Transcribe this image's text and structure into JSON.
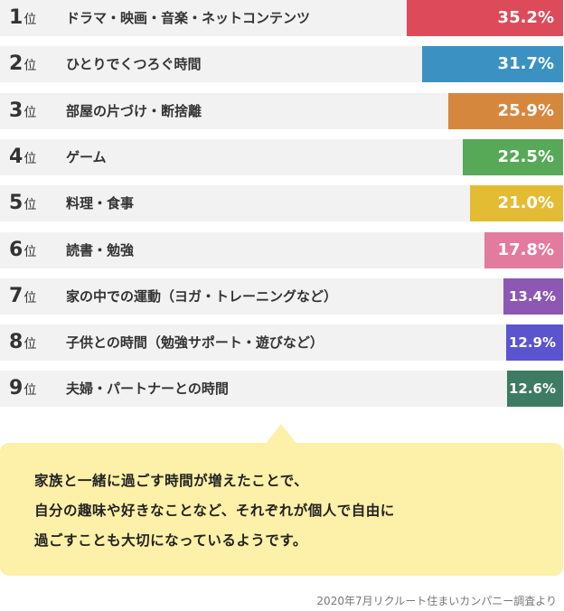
{
  "chart_data": {
    "type": "bar",
    "orientation": "horizontal",
    "rank_suffix": "位",
    "ranks": [
      "1",
      "2",
      "3",
      "4",
      "5",
      "6",
      "7",
      "8",
      "9"
    ],
    "categories": [
      "ドラマ・映画・音楽・ネットコンテンツ",
      "ひとりでくつろぐ時間",
      "部屋の片づけ・断捨離",
      "ゲーム",
      "料理・食事",
      "読書・勉強",
      "家の中での運動（ヨガ・トレーニングなど）",
      "子供との時間（勉強サポート・遊びなど）",
      "夫婦・パートナーとの時間"
    ],
    "values": [
      35.2,
      31.7,
      25.9,
      22.5,
      21.0,
      17.8,
      13.4,
      12.9,
      12.6
    ],
    "value_labels": [
      "35.2%",
      "31.7%",
      "25.9%",
      "22.5%",
      "21.0%",
      "17.8%",
      "13.4%",
      "12.9%",
      "12.6%"
    ],
    "colors": [
      "#dd4a5a",
      "#3a91c2",
      "#d6873e",
      "#57a957",
      "#e3bc33",
      "#e27b9e",
      "#8c58b3",
      "#5a55cf",
      "#3d7b63"
    ],
    "xlim": [
      0,
      100
    ],
    "grid": false,
    "legend": "none"
  },
  "callout": {
    "lines": [
      "家族と一緒に過ごす時間が増えたことで、",
      "自分の趣味や好きなことなど、それぞれが個人で自由に",
      "過ごすことも大切になっているようです。"
    ],
    "background": "#fdf0a8"
  },
  "source": "2020年7月リクルート住まいカンパニー調査より"
}
